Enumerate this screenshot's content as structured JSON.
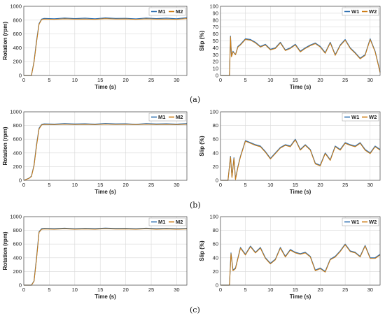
{
  "figure": {
    "row_labels": [
      "(a)",
      "(b)",
      "(c)"
    ]
  },
  "colors": {
    "series_1": "#2f6fb0",
    "series_2": "#cc7a10"
  },
  "chart_data": [
    {
      "panel": "a-left",
      "type": "line",
      "xlabel": "Time (s)",
      "ylabel": "Rotation (rpm)",
      "xlim": [
        0,
        32
      ],
      "ylim": [
        0,
        1000
      ],
      "xticks": [
        0,
        5,
        10,
        15,
        20,
        25,
        30
      ],
      "yticks": [
        0,
        200,
        400,
        600,
        800,
        1000
      ],
      "grid": true,
      "legend": "top-right",
      "series": [
        {
          "name": "M1",
          "x": [
            0,
            1.5,
            2.0,
            2.5,
            3.0,
            3.5,
            4,
            6,
            8,
            10,
            12,
            14,
            16,
            18,
            20,
            22,
            24,
            26,
            28,
            30,
            32
          ],
          "y": [
            0,
            0,
            200,
            500,
            750,
            815,
            825,
            820,
            830,
            822,
            828,
            820,
            832,
            824,
            826,
            818,
            830,
            822,
            828,
            820,
            835
          ]
        },
        {
          "name": "M2",
          "x": [
            0,
            1.5,
            2.0,
            2.5,
            3.0,
            3.5,
            4,
            6,
            8,
            10,
            12,
            14,
            16,
            18,
            20,
            22,
            24,
            26,
            28,
            30,
            32
          ],
          "y": [
            0,
            0,
            190,
            480,
            740,
            808,
            815,
            812,
            818,
            814,
            816,
            812,
            820,
            815,
            817,
            812,
            818,
            814,
            816,
            812,
            822
          ]
        }
      ]
    },
    {
      "panel": "a-right",
      "type": "line",
      "xlabel": "Time (s)",
      "ylabel": "Slip (%)",
      "xlim": [
        0,
        32
      ],
      "ylim": [
        0,
        100
      ],
      "xticks": [
        0,
        5,
        10,
        15,
        20,
        25,
        30
      ],
      "yticks": [
        0,
        10,
        20,
        30,
        40,
        50,
        60,
        70,
        80,
        90,
        100
      ],
      "grid": true,
      "legend": "top-right",
      "series": [
        {
          "name": "W1",
          "x": [
            0,
            1.8,
            2.0,
            2.2,
            2.5,
            3,
            3.5,
            4,
            5,
            6,
            7,
            8,
            9,
            10,
            11,
            12,
            13,
            14,
            15,
            16,
            17,
            18,
            19,
            20,
            21,
            22,
            23,
            24,
            25,
            26,
            27,
            28,
            29,
            30,
            31,
            32
          ],
          "y": [
            0,
            0,
            57,
            28,
            35,
            30,
            42,
            45,
            53,
            52,
            48,
            42,
            45,
            38,
            40,
            48,
            37,
            40,
            45,
            35,
            40,
            44,
            47,
            42,
            33,
            48,
            30,
            44,
            52,
            40,
            33,
            25,
            30,
            53,
            35,
            5
          ]
        },
        {
          "name": "W2",
          "x": [
            0,
            1.8,
            2.0,
            2.2,
            2.5,
            3,
            3.5,
            4,
            5,
            6,
            7,
            8,
            9,
            10,
            11,
            12,
            13,
            14,
            15,
            16,
            17,
            18,
            19,
            20,
            21,
            22,
            23,
            24,
            25,
            26,
            27,
            28,
            29,
            30,
            31,
            32
          ],
          "y": [
            0,
            0,
            56,
            27,
            34,
            30,
            41,
            44,
            52,
            51,
            47,
            41,
            44,
            37,
            39,
            47,
            36,
            39,
            44,
            34,
            39,
            43,
            46,
            41,
            32,
            47,
            29,
            43,
            51,
            39,
            32,
            24,
            29,
            52,
            34,
            4
          ]
        }
      ]
    },
    {
      "panel": "b-left",
      "type": "line",
      "xlabel": "Time (s)",
      "ylabel": "Rotation (rpm)",
      "xlim": [
        0,
        32
      ],
      "ylim": [
        0,
        1000
      ],
      "xticks": [
        0,
        5,
        10,
        15,
        20,
        25,
        30
      ],
      "yticks": [
        0,
        200,
        400,
        600,
        800,
        1000
      ],
      "grid": true,
      "legend": "top-right",
      "series": [
        {
          "name": "M1",
          "x": [
            0,
            1.0,
            1.5,
            2.0,
            2.5,
            3.0,
            3.5,
            4,
            6,
            8,
            10,
            12,
            14,
            16,
            18,
            20,
            22,
            24,
            26,
            28,
            30,
            32
          ],
          "y": [
            0,
            30,
            60,
            220,
            520,
            760,
            815,
            825,
            820,
            828,
            822,
            826,
            820,
            830,
            824,
            826,
            818,
            828,
            822,
            826,
            820,
            828
          ]
        },
        {
          "name": "M2",
          "x": [
            0,
            1.0,
            1.5,
            2.0,
            2.5,
            3.0,
            3.5,
            4,
            6,
            8,
            10,
            12,
            14,
            16,
            18,
            20,
            22,
            24,
            26,
            28,
            30,
            32
          ],
          "y": [
            0,
            28,
            55,
            210,
            500,
            750,
            808,
            815,
            812,
            818,
            814,
            816,
            812,
            820,
            815,
            817,
            812,
            818,
            814,
            816,
            812,
            818
          ]
        }
      ]
    },
    {
      "panel": "b-right",
      "type": "line",
      "xlabel": "Time (s)",
      "ylabel": "Slip (%)",
      "xlim": [
        0,
        32
      ],
      "ylim": [
        0,
        100
      ],
      "xticks": [
        0,
        5,
        10,
        15,
        20,
        25,
        30
      ],
      "yticks": [
        0,
        20,
        40,
        60,
        80,
        100
      ],
      "grid": true,
      "legend": "top-right",
      "series": [
        {
          "name": "W1",
          "x": [
            0,
            1.5,
            2.0,
            2.3,
            2.7,
            3.0,
            3.5,
            4,
            5,
            6,
            7,
            8,
            9,
            10,
            11,
            12,
            13,
            14,
            15,
            16,
            17,
            18,
            19,
            20,
            21,
            22,
            23,
            24,
            25,
            26,
            27,
            28,
            29,
            30,
            31,
            32
          ],
          "y": [
            0,
            0,
            35,
            5,
            33,
            2,
            20,
            35,
            58,
            55,
            52,
            50,
            42,
            32,
            40,
            48,
            52,
            50,
            60,
            45,
            52,
            45,
            25,
            22,
            40,
            30,
            50,
            45,
            55,
            52,
            50,
            55,
            45,
            40,
            50,
            45
          ]
        },
        {
          "name": "W2",
          "x": [
            0,
            1.5,
            2.0,
            2.3,
            2.7,
            3.0,
            3.5,
            4,
            5,
            6,
            7,
            8,
            9,
            10,
            11,
            12,
            13,
            14,
            15,
            16,
            17,
            18,
            19,
            20,
            21,
            22,
            23,
            24,
            25,
            26,
            27,
            28,
            29,
            30,
            31,
            32
          ],
          "y": [
            0,
            0,
            34,
            4,
            32,
            1,
            19,
            34,
            57,
            54,
            51,
            49,
            41,
            31,
            39,
            47,
            51,
            49,
            59,
            44,
            51,
            44,
            24,
            21,
            39,
            29,
            49,
            44,
            54,
            51,
            49,
            54,
            44,
            39,
            49,
            44
          ]
        }
      ]
    },
    {
      "panel": "c-left",
      "type": "line",
      "xlabel": "Time (s)",
      "ylabel": "Rotation (rpm)",
      "xlim": [
        0,
        32
      ],
      "ylim": [
        0,
        1000
      ],
      "xticks": [
        0,
        5,
        10,
        15,
        20,
        25,
        30
      ],
      "yticks": [
        0,
        200,
        400,
        600,
        800,
        1000
      ],
      "grid": true,
      "legend": "top-right",
      "series": [
        {
          "name": "M1",
          "x": [
            0,
            1.5,
            2.0,
            2.5,
            3.0,
            3.5,
            4,
            6,
            8,
            10,
            12,
            14,
            16,
            18,
            20,
            22,
            24,
            26,
            28,
            30,
            32
          ],
          "y": [
            0,
            0,
            60,
            400,
            780,
            825,
            830,
            826,
            832,
            824,
            830,
            826,
            834,
            828,
            830,
            824,
            832,
            826,
            830,
            824,
            828
          ]
        },
        {
          "name": "M2",
          "x": [
            0,
            1.5,
            2.0,
            2.5,
            3.0,
            3.5,
            4,
            6,
            8,
            10,
            12,
            14,
            16,
            18,
            20,
            22,
            24,
            26,
            28,
            30,
            32
          ],
          "y": [
            0,
            0,
            55,
            380,
            770,
            815,
            820,
            816,
            822,
            816,
            820,
            816,
            824,
            818,
            820,
            816,
            822,
            816,
            820,
            816,
            820
          ]
        }
      ]
    },
    {
      "panel": "c-right",
      "type": "line",
      "xlabel": "Time (s)",
      "ylabel": "Slip (%)",
      "xlim": [
        0,
        32
      ],
      "ylim": [
        0,
        100
      ],
      "xticks": [
        0,
        5,
        10,
        15,
        20,
        25,
        30
      ],
      "yticks": [
        0,
        20,
        40,
        60,
        80,
        100
      ],
      "grid": true,
      "legend": "top-right",
      "series": [
        {
          "name": "W1",
          "x": [
            0,
            1.8,
            2.1,
            2.5,
            3.0,
            4,
            5,
            6,
            7,
            8,
            9,
            10,
            11,
            12,
            13,
            14,
            15,
            16,
            17,
            18,
            19,
            20,
            21,
            22,
            23,
            24,
            25,
            26,
            27,
            28,
            29,
            30,
            31,
            32
          ],
          "y": [
            0,
            0,
            47,
            22,
            25,
            55,
            45,
            57,
            48,
            55,
            40,
            32,
            38,
            55,
            42,
            52,
            48,
            46,
            48,
            42,
            22,
            25,
            20,
            38,
            42,
            50,
            60,
            50,
            48,
            42,
            58,
            40,
            40,
            45
          ]
        },
        {
          "name": "W2",
          "x": [
            0,
            1.8,
            2.1,
            2.5,
            3.0,
            4,
            5,
            6,
            7,
            8,
            9,
            10,
            11,
            12,
            13,
            14,
            15,
            16,
            17,
            18,
            19,
            20,
            21,
            22,
            23,
            24,
            25,
            26,
            27,
            28,
            29,
            30,
            31,
            32
          ],
          "y": [
            0,
            0,
            46,
            21,
            24,
            54,
            44,
            56,
            47,
            54,
            39,
            31,
            37,
            54,
            41,
            51,
            47,
            45,
            47,
            41,
            21,
            24,
            19,
            37,
            41,
            49,
            59,
            49,
            47,
            41,
            57,
            39,
            39,
            44
          ]
        }
      ]
    }
  ]
}
